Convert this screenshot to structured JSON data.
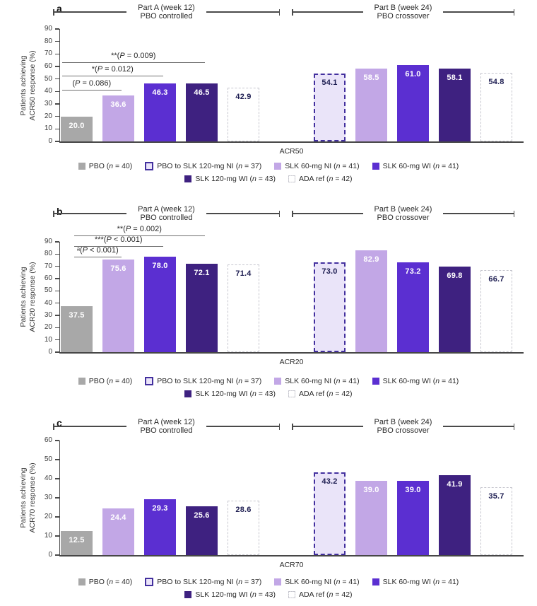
{
  "colors": {
    "pbo": "#a8a8a8",
    "slk60_ni": "#c2a7e6",
    "slk60_wi": "#5b2fd1",
    "slk120_wi": "#3e2180",
    "pbo_to_slk_fill": "#eae4f9",
    "pbo_to_slk_border": "#43309e",
    "ada_fill": "#ffffff",
    "ada_border": "#c6c6ce",
    "value_label_light": "#ffffff",
    "value_label_dark": "#1e1e52",
    "axis": "#4a4a4a",
    "significance_line": "#6f6f6f",
    "text": "#2a2a2a"
  },
  "shared": {
    "group_headers": [
      {
        "line1": "Part A (week 12)",
        "line2": "PBO controlled"
      },
      {
        "line1": "Part B (week 24)",
        "line2": "PBO crossover"
      }
    ],
    "legend": {
      "items": [
        {
          "name": "PBO",
          "n": "40",
          "style": "pbo"
        },
        {
          "name": "PBO to SLK 120-mg NI",
          "n": "37",
          "style": "pbo2slk"
        },
        {
          "name": "SLK 60-mg NI",
          "n": "41",
          "style": "ni60"
        },
        {
          "name": "SLK 60-mg WI",
          "n": "41",
          "style": "wi60"
        },
        {
          "name": "SLK 120-mg WI",
          "n": "43",
          "style": "wi120"
        },
        {
          "name": "ADA ref",
          "n": "42",
          "style": "ada"
        }
      ]
    }
  },
  "chart_data": [
    {
      "panel_letter": "a",
      "type": "bar",
      "xlabel": "ACR50",
      "ylabel": [
        "Patients achieving",
        "ACR50 response (%)"
      ],
      "ylim": [
        0,
        90
      ],
      "yticks": [
        0,
        10,
        20,
        30,
        40,
        50,
        60,
        70,
        80,
        90
      ],
      "groups": [
        "Part A (week 12) PBO controlled",
        "Part B (week 24) PBO crossover"
      ],
      "bars": [
        {
          "group": "Part A (week 12)",
          "series": "PBO",
          "value": 20.0,
          "label": "20.0",
          "style": "pbo"
        },
        {
          "group": "Part A (week 12)",
          "series": "SLK 60-mg NI",
          "value": 36.6,
          "label": "36.6",
          "style": "ni60"
        },
        {
          "group": "Part A (week 12)",
          "series": "SLK 60-mg WI",
          "value": 46.3,
          "label": "46.3",
          "style": "wi60"
        },
        {
          "group": "Part A (week 12)",
          "series": "SLK 120-mg WI",
          "value": 46.5,
          "label": "46.5",
          "style": "wi120"
        },
        {
          "group": "Part A (week 12)",
          "series": "ADA ref",
          "value": 42.9,
          "label": "42.9",
          "style": "ada"
        },
        {
          "group": "Part B (week 24)",
          "series": "PBO to SLK 120-mg NI",
          "value": 54.1,
          "label": "54.1",
          "style": "pbo2slk"
        },
        {
          "group": "Part B (week 24)",
          "series": "SLK 60-mg NI",
          "value": 58.5,
          "label": "58.5",
          "style": "ni60"
        },
        {
          "group": "Part B (week 24)",
          "series": "SLK 60-mg WI",
          "value": 61.0,
          "label": "61.0",
          "style": "wi60"
        },
        {
          "group": "Part B (week 24)",
          "series": "SLK 120-mg WI",
          "value": 58.1,
          "label": "58.1",
          "style": "wi120"
        },
        {
          "group": "Part B (week 24)",
          "series": "ADA ref",
          "value": 54.8,
          "label": "54.8",
          "style": "ada"
        }
      ],
      "significance": [
        {
          "label": "**(P = 0.009)",
          "from": 0,
          "to": 3
        },
        {
          "label": "*(P = 0.012)",
          "from": 0,
          "to": 2
        },
        {
          "label": "(P = 0.086)",
          "from": 0,
          "to": 1
        }
      ]
    },
    {
      "panel_letter": "b",
      "type": "bar",
      "xlabel": "ACR20",
      "ylabel": [
        "Patients achieving",
        "ACR20 response (%)"
      ],
      "ylim": [
        0,
        90
      ],
      "yticks": [
        0,
        10,
        20,
        30,
        40,
        50,
        60,
        70,
        80,
        90
      ],
      "groups": [
        "Part A (week 12) PBO controlled",
        "Part B (week 24) PBO crossover"
      ],
      "bars": [
        {
          "group": "Part A (week 12)",
          "series": "PBO",
          "value": 37.5,
          "label": "37.5",
          "style": "pbo"
        },
        {
          "group": "Part A (week 12)",
          "series": "SLK 60-mg NI",
          "value": 75.6,
          "label": "75.6",
          "style": "ni60"
        },
        {
          "group": "Part A (week 12)",
          "series": "SLK 60-mg WI",
          "value": 78.0,
          "label": "78.0",
          "style": "wi60"
        },
        {
          "group": "Part A (week 12)",
          "series": "SLK 120-mg WI",
          "value": 72.1,
          "label": "72.1",
          "style": "wi120"
        },
        {
          "group": "Part A (week 12)",
          "series": "ADA ref",
          "value": 71.4,
          "label": "71.4",
          "style": "ada"
        },
        {
          "group": "Part B (week 24)",
          "series": "PBO to SLK 120-mg NI",
          "value": 73.0,
          "label": "73.0",
          "style": "pbo2slk"
        },
        {
          "group": "Part B (week 24)",
          "series": "SLK 60-mg NI",
          "value": 82.9,
          "label": "82.9",
          "style": "ni60"
        },
        {
          "group": "Part B (week 24)",
          "series": "SLK 60-mg WI",
          "value": 73.2,
          "label": "73.2",
          "style": "wi60"
        },
        {
          "group": "Part B (week 24)",
          "series": "SLK 120-mg WI",
          "value": 69.8,
          "label": "69.8",
          "style": "wi120"
        },
        {
          "group": "Part B (week 24)",
          "series": "ADA ref",
          "value": 66.7,
          "label": "66.7",
          "style": "ada"
        }
      ],
      "significance": [
        {
          "label": "**(P = 0.002)",
          "from": 0,
          "to": 3
        },
        {
          "label": "***(P < 0.001)",
          "from": 0,
          "to": 2
        },
        {
          "label": "ᵃ(P < 0.001)",
          "from": 0,
          "to": 1
        }
      ]
    },
    {
      "panel_letter": "c",
      "type": "bar",
      "xlabel": "ACR70",
      "ylabel": [
        "Patients achieving",
        "ACR70 response (%)"
      ],
      "ylim": [
        0,
        60
      ],
      "yticks": [
        0,
        10,
        20,
        30,
        40,
        50,
        60
      ],
      "groups": [
        "Part A (week 12) PBO controlled",
        "Part B (week 24) PBO crossover"
      ],
      "bars": [
        {
          "group": "Part A (week 12)",
          "series": "PBO",
          "value": 12.5,
          "label": "12.5",
          "style": "pbo"
        },
        {
          "group": "Part A (week 12)",
          "series": "SLK 60-mg NI",
          "value": 24.4,
          "label": "24.4",
          "style": "ni60"
        },
        {
          "group": "Part A (week 12)",
          "series": "SLK 60-mg WI",
          "value": 29.3,
          "label": "29.3",
          "style": "wi60"
        },
        {
          "group": "Part A (week 12)",
          "series": "SLK 120-mg WI",
          "value": 25.6,
          "label": "25.6",
          "style": "wi120"
        },
        {
          "group": "Part A (week 12)",
          "series": "ADA ref",
          "value": 28.6,
          "label": "28.6",
          "style": "ada"
        },
        {
          "group": "Part B (week 24)",
          "series": "PBO to SLK 120-mg NI",
          "value": 43.2,
          "label": "43.2",
          "style": "pbo2slk"
        },
        {
          "group": "Part B (week 24)",
          "series": "SLK 60-mg NI",
          "value": 39.0,
          "label": "39.0",
          "style": "ni60"
        },
        {
          "group": "Part B (week 24)",
          "series": "SLK 60-mg WI",
          "value": 39.0,
          "label": "39.0",
          "style": "wi60"
        },
        {
          "group": "Part B (week 24)",
          "series": "SLK 120-mg WI",
          "value": 41.9,
          "label": "41.9",
          "style": "wi120"
        },
        {
          "group": "Part B (week 24)",
          "series": "ADA ref",
          "value": 35.7,
          "label": "35.7",
          "style": "ada"
        }
      ],
      "significance": []
    }
  ]
}
